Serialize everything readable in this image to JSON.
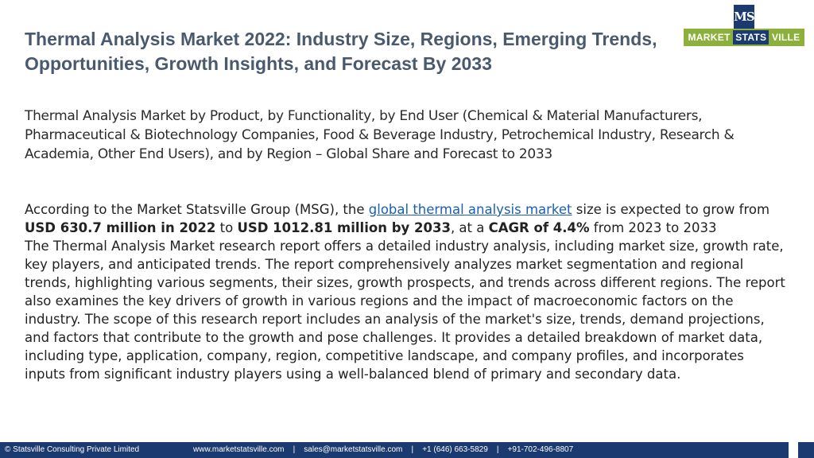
{
  "header": {
    "title": "Thermal Analysis Market 2022: Industry Size, Regions, Emerging Trends, Opportunities, Growth Insights, and Forecast By 2033"
  },
  "logo": {
    "mark": "MS",
    "word1": "MARKET ",
    "word2": "STATS",
    "word3": " VILLE"
  },
  "subtitle": "Thermal Analysis Market by Product, by Functionality, by End User (Chemical & Material Manufacturers, Pharmaceutical & Biotechnology Companies, Food & Beverage Industry, Petrochemical Industry, Research & Academia, Other End Users), and by Region – Global Share and Forecast to 2033",
  "body": {
    "p1_a": "According to the Market Statsville Group (MSG), the ",
    "p1_link": "global thermal analysis market",
    "p1_b": " size is expected to grow from ",
    "p1_value_2022": "USD 630.7 million in 2022",
    "p1_c": " to ",
    "p1_value_2033": "USD 1012.81 million by 2033",
    "p1_d": ", at a ",
    "p1_cagr": "CAGR of 4.4%",
    "p1_e": " from 2023 to 2033",
    "p2": "The Thermal Analysis Market research report offers a detailed industry analysis, including market size, growth rate, key players, and anticipated trends. The report comprehensively analyzes market segmentation and regional trends, highlighting various segments, their sizes, growth prospects, and trends across different regions. The report also examines the key drivers of growth in various regions and the impact of macroeconomic factors on the industry. The scope of this research report includes an analysis of the market's size, trends, demand projections, and factors that contribute to the growth and pose challenges. It provides a detailed breakdown of market data, including type, application, company, region, competitive landscape, and company profiles, and incorporates inputs from significant industry players using a well-balanced blend of primary and secondary data."
  },
  "footer": {
    "company": "© Statsville Consulting Private Limited",
    "contacts": "www.marketstatsville.com    |    sales@marketstatsville.com    |    +1 (646) 663-5829    |    +91-702-496-8807"
  },
  "colors": {
    "title": "#4a5a6e",
    "navy": "#1b3a70",
    "logo_green": "#8bb13c",
    "link": "#1a5fb4"
  }
}
